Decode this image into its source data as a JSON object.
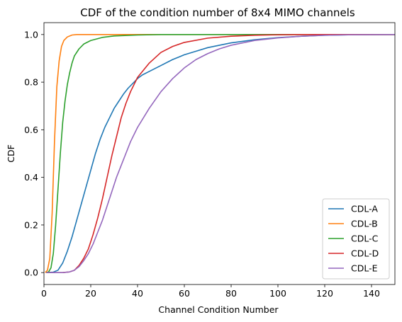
{
  "chart_data": {
    "type": "line",
    "title": "CDF of the condition number of 8x4 MIMO channels",
    "xlabel": "Channel Condition Number",
    "ylabel": "CDF",
    "xlim": [
      0,
      150
    ],
    "ylim": [
      -0.05,
      1.05
    ],
    "xticks": [
      0,
      20,
      40,
      60,
      80,
      100,
      120,
      140
    ],
    "yticks": [
      0.0,
      0.2,
      0.4,
      0.6,
      0.8,
      1.0
    ],
    "xtick_labels": [
      "0",
      "20",
      "40",
      "60",
      "80",
      "100",
      "120",
      "140"
    ],
    "ytick_labels": [
      "0.0",
      "0.2",
      "0.4",
      "0.6",
      "0.8",
      "1.0"
    ],
    "grid": false,
    "legend_position": "bottom-right",
    "series": [
      {
        "name": "CDL-A",
        "color": "#1f77b4",
        "points": [
          [
            1,
            0
          ],
          [
            4,
            0.002
          ],
          [
            6,
            0.01
          ],
          [
            8,
            0.04
          ],
          [
            10,
            0.09
          ],
          [
            12,
            0.15
          ],
          [
            14,
            0.22
          ],
          [
            16,
            0.29
          ],
          [
            18,
            0.36
          ],
          [
            20,
            0.43
          ],
          [
            22,
            0.5
          ],
          [
            24,
            0.56
          ],
          [
            26,
            0.61
          ],
          [
            28,
            0.65
          ],
          [
            30,
            0.69
          ],
          [
            32,
            0.72
          ],
          [
            34,
            0.75
          ],
          [
            36,
            0.775
          ],
          [
            38,
            0.795
          ],
          [
            40,
            0.815
          ],
          [
            42,
            0.83
          ],
          [
            45,
            0.845
          ],
          [
            50,
            0.87
          ],
          [
            55,
            0.895
          ],
          [
            60,
            0.915
          ],
          [
            65,
            0.93
          ],
          [
            70,
            0.945
          ],
          [
            80,
            0.965
          ],
          [
            90,
            0.978
          ],
          [
            100,
            0.987
          ],
          [
            110,
            0.993
          ],
          [
            120,
            0.997
          ],
          [
            130,
            0.999
          ],
          [
            150,
            1.0
          ]
        ]
      },
      {
        "name": "CDL-B",
        "color": "#ff7f0e",
        "points": [
          [
            0.5,
            0
          ],
          [
            1.5,
            0.01
          ],
          [
            2.5,
            0.06
          ],
          [
            3.5,
            0.25
          ],
          [
            4.5,
            0.55
          ],
          [
            5.5,
            0.78
          ],
          [
            6.5,
            0.89
          ],
          [
            7.5,
            0.95
          ],
          [
            8.5,
            0.975
          ],
          [
            10,
            0.99
          ],
          [
            12,
            0.998
          ],
          [
            14,
            1.0
          ],
          [
            150,
            1.0
          ]
        ]
      },
      {
        "name": "CDL-C",
        "color": "#2ca02c",
        "points": [
          [
            1,
            0
          ],
          [
            2,
            0.003
          ],
          [
            3,
            0.02
          ],
          [
            4,
            0.08
          ],
          [
            5,
            0.2
          ],
          [
            6,
            0.35
          ],
          [
            7,
            0.5
          ],
          [
            8,
            0.63
          ],
          [
            9,
            0.72
          ],
          [
            10,
            0.79
          ],
          [
            11,
            0.84
          ],
          [
            12,
            0.88
          ],
          [
            13,
            0.91
          ],
          [
            15,
            0.94
          ],
          [
            17,
            0.96
          ],
          [
            20,
            0.975
          ],
          [
            25,
            0.988
          ],
          [
            30,
            0.994
          ],
          [
            40,
            0.998
          ],
          [
            50,
            1.0
          ],
          [
            150,
            1.0
          ]
        ]
      },
      {
        "name": "CDL-D",
        "color": "#d62728",
        "points": [
          [
            1,
            0
          ],
          [
            8,
            0
          ],
          [
            11,
            0.003
          ],
          [
            13,
            0.01
          ],
          [
            15,
            0.03
          ],
          [
            17,
            0.06
          ],
          [
            19,
            0.1
          ],
          [
            21,
            0.16
          ],
          [
            23,
            0.23
          ],
          [
            25,
            0.31
          ],
          [
            27,
            0.4
          ],
          [
            29,
            0.49
          ],
          [
            31,
            0.57
          ],
          [
            33,
            0.65
          ],
          [
            35,
            0.71
          ],
          [
            37,
            0.76
          ],
          [
            40,
            0.82
          ],
          [
            45,
            0.88
          ],
          [
            50,
            0.925
          ],
          [
            55,
            0.95
          ],
          [
            60,
            0.967
          ],
          [
            70,
            0.985
          ],
          [
            80,
            0.993
          ],
          [
            90,
            0.997
          ],
          [
            100,
            0.999
          ],
          [
            110,
            1.0
          ],
          [
            150,
            1.0
          ]
        ]
      },
      {
        "name": "CDL-E",
        "color": "#9467bd",
        "points": [
          [
            1,
            0
          ],
          [
            8,
            0
          ],
          [
            11,
            0.003
          ],
          [
            13,
            0.01
          ],
          [
            15,
            0.025
          ],
          [
            17,
            0.05
          ],
          [
            19,
            0.08
          ],
          [
            21,
            0.12
          ],
          [
            23,
            0.17
          ],
          [
            25,
            0.22
          ],
          [
            27,
            0.28
          ],
          [
            29,
            0.34
          ],
          [
            31,
            0.4
          ],
          [
            33,
            0.45
          ],
          [
            35,
            0.5
          ],
          [
            37,
            0.55
          ],
          [
            40,
            0.61
          ],
          [
            45,
            0.69
          ],
          [
            50,
            0.76
          ],
          [
            55,
            0.815
          ],
          [
            60,
            0.86
          ],
          [
            65,
            0.895
          ],
          [
            70,
            0.92
          ],
          [
            75,
            0.94
          ],
          [
            80,
            0.955
          ],
          [
            90,
            0.975
          ],
          [
            100,
            0.986
          ],
          [
            110,
            0.993
          ],
          [
            120,
            0.997
          ],
          [
            130,
            0.999
          ],
          [
            150,
            1.0
          ]
        ]
      }
    ]
  }
}
